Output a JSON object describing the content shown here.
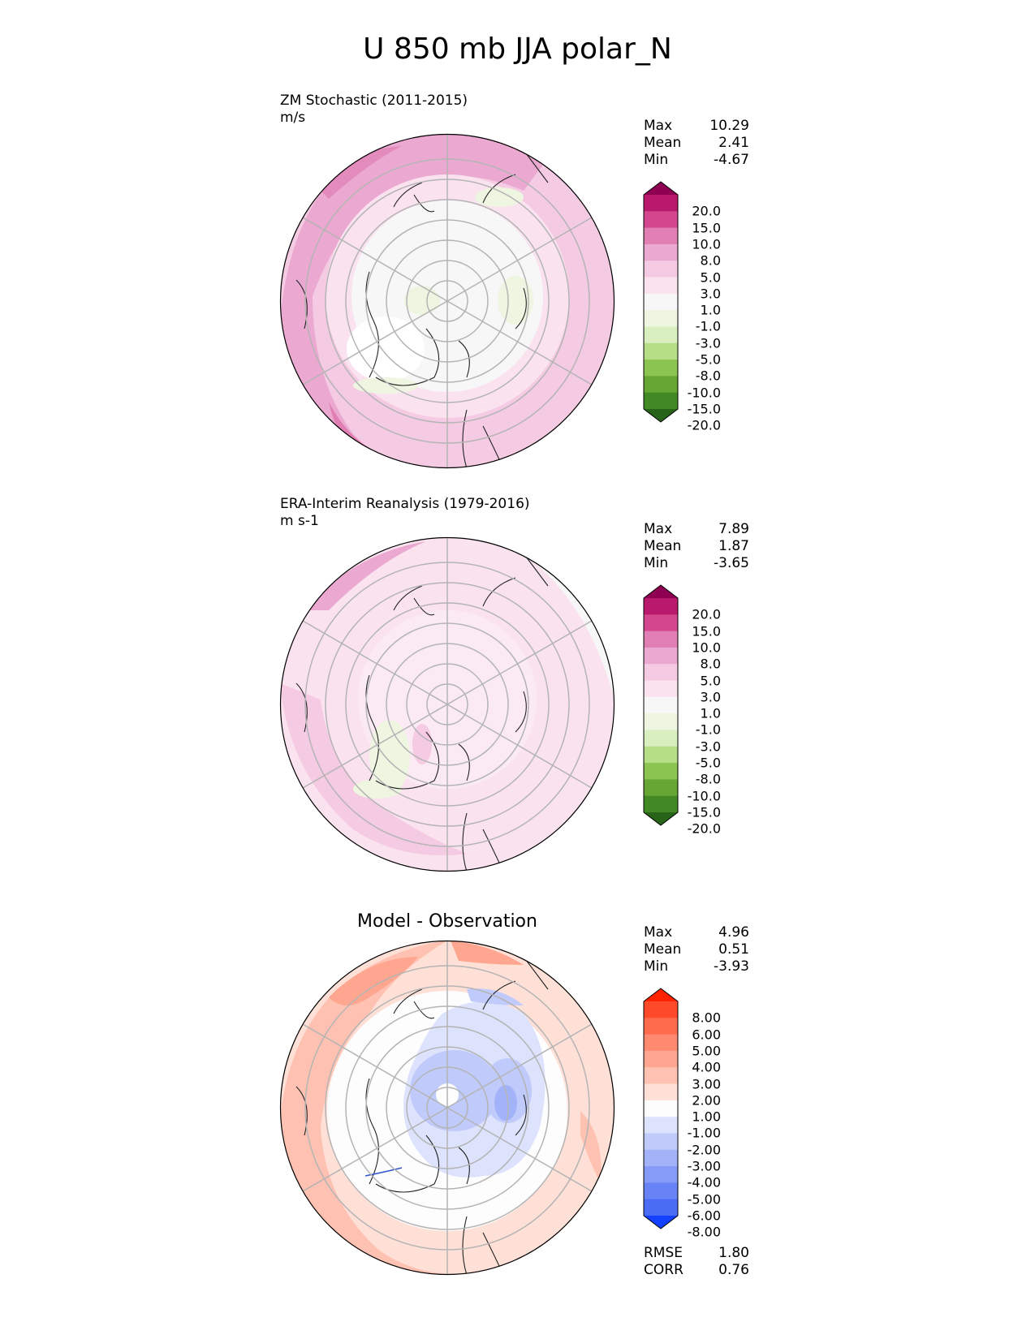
{
  "title": "U 850 mb JJA polar_N",
  "panels": [
    {
      "title_line1": "ZM Stochastic (2011-2015)",
      "title_line2": "m/s",
      "stats": [
        {
          "label": "Max",
          "value": "10.29"
        },
        {
          "label": "Mean",
          "value": "2.41"
        },
        {
          "label": "Min",
          "value": "-4.67"
        }
      ],
      "colorbar": {
        "ticks": [
          "20.0",
          "15.0",
          "10.0",
          "8.0",
          "5.0",
          "3.0",
          "1.0",
          "-1.0",
          "-3.0",
          "-5.0",
          "-8.0",
          "-10.0",
          "-15.0",
          "-20.0"
        ],
        "colors": [
          "#8e0152",
          "#b8196c",
          "#d4478f",
          "#e17fb5",
          "#eba9d1",
          "#f5cbe3",
          "#fae3ef",
          "#f7f7f7",
          "#eef5e1",
          "#d9efc0",
          "#b6de87",
          "#8cc452",
          "#66a633",
          "#428925",
          "#276419"
        ]
      }
    },
    {
      "title_line1": "ERA-Interim Reanalysis (1979-2016)",
      "title_line2": "m s-1",
      "stats": [
        {
          "label": "Max",
          "value": "7.89"
        },
        {
          "label": "Mean",
          "value": "1.87"
        },
        {
          "label": "Min",
          "value": "-3.65"
        }
      ],
      "colorbar": {
        "ticks": [
          "20.0",
          "15.0",
          "10.0",
          "8.0",
          "5.0",
          "3.0",
          "1.0",
          "-1.0",
          "-3.0",
          "-5.0",
          "-8.0",
          "-10.0",
          "-15.0",
          "-20.0"
        ],
        "colors": [
          "#8e0152",
          "#b8196c",
          "#d4478f",
          "#e17fb5",
          "#eba9d1",
          "#f5cbe3",
          "#fae3ef",
          "#f7f7f7",
          "#eef5e1",
          "#d9efc0",
          "#b6de87",
          "#8cc452",
          "#66a633",
          "#428925",
          "#276419"
        ]
      }
    },
    {
      "title_line1": "Model - Observation",
      "stats": [
        {
          "label": "Max",
          "value": "4.96"
        },
        {
          "label": "Mean",
          "value": "0.51"
        },
        {
          "label": "Min",
          "value": "-3.93"
        }
      ],
      "metrics": [
        {
          "label": "RMSE",
          "value": "1.80"
        },
        {
          "label": "CORR",
          "value": "0.76"
        }
      ],
      "colorbar": {
        "ticks": [
          "8.00",
          "6.00",
          "5.00",
          "4.00",
          "3.00",
          "2.00",
          "1.00",
          "-1.00",
          "-2.00",
          "-3.00",
          "-4.00",
          "-5.00",
          "-6.00",
          "-8.00"
        ],
        "colors": [
          "#ff2200",
          "#ff4a2a",
          "#ff6c4d",
          "#ff8a70",
          "#ffa690",
          "#ffc2b2",
          "#ffe0d7",
          "#fdfdfd",
          "#dde3fd",
          "#c0cbfb",
          "#a3b3f9",
          "#869bf8",
          "#6883f6",
          "#4a6bf4",
          "#1440ff"
        ]
      }
    }
  ]
}
